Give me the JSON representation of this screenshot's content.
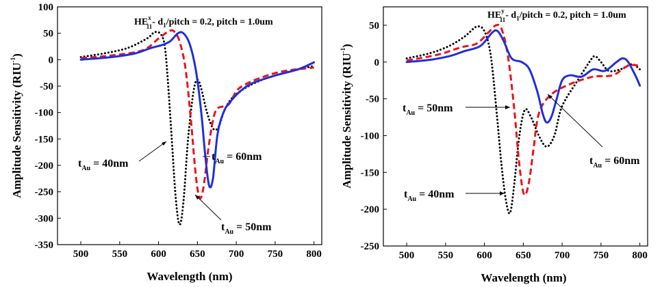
{
  "chart_data": [
    {
      "type": "line",
      "title_main": "HE",
      "title_sup": "x",
      "title_sub": "11",
      "title_rest_a": "- d",
      "title_rest_sub": "1",
      "title_rest_b": "/pitch = 0.2, pitch = 1.0um",
      "xlabel": "Wavelength (nm)",
      "ylabel": "Amplitude Sensitivity (RIU",
      "ylabel_sup": "-1",
      "ylabel_close": ")",
      "xlim": [
        470,
        810
      ],
      "ylim": [
        -350,
        100
      ],
      "xticks": [
        500,
        550,
        600,
        650,
        700,
        750,
        800
      ],
      "yticks": [
        100,
        50,
        0,
        -50,
        -100,
        -150,
        -200,
        -250,
        -300,
        -350
      ],
      "series": [
        {
          "color": "#000000",
          "dash": "dot",
          "points": [
            [
              500,
              5
            ],
            [
              530,
              12
            ],
            [
              560,
              22
            ],
            [
              585,
              40
            ],
            [
              595,
              52
            ],
            [
              603,
              48
            ],
            [
              608,
              25
            ],
            [
              612,
              -40
            ],
            [
              617,
              -150
            ],
            [
              622,
              -260
            ],
            [
              627,
              -312
            ],
            [
              632,
              -270
            ],
            [
              638,
              -150
            ],
            [
              645,
              -60
            ],
            [
              650,
              -38
            ],
            [
              655,
              -55
            ],
            [
              662,
              -98
            ],
            [
              670,
              -130
            ],
            [
              677,
              -128
            ],
            [
              685,
              -95
            ],
            [
              695,
              -72
            ],
            [
              710,
              -55
            ],
            [
              730,
              -40
            ],
            [
              750,
              -30
            ],
            [
              775,
              -20
            ],
            [
              800,
              -12
            ]
          ]
        },
        {
          "color": "#e8141c",
          "dash": "dash",
          "points": [
            [
              500,
              3
            ],
            [
              540,
              8
            ],
            [
              580,
              18
            ],
            [
              600,
              40
            ],
            [
              615,
              55
            ],
            [
              622,
              50
            ],
            [
              628,
              30
            ],
            [
              635,
              -20
            ],
            [
              642,
              -120
            ],
            [
              648,
              -220
            ],
            [
              653,
              -262
            ],
            [
              658,
              -240
            ],
            [
              664,
              -170
            ],
            [
              670,
              -115
            ],
            [
              676,
              -92
            ],
            [
              690,
              -85
            ],
            [
              700,
              -60
            ],
            [
              710,
              -48
            ],
            [
              730,
              -35
            ],
            [
              760,
              -22
            ],
            [
              800,
              -15
            ]
          ]
        },
        {
          "color": "#1f2fd9",
          "dash": "solid",
          "points": [
            [
              500,
              0
            ],
            [
              540,
              5
            ],
            [
              570,
              12
            ],
            [
              590,
              22
            ],
            [
              605,
              28
            ],
            [
              615,
              35
            ],
            [
              625,
              50
            ],
            [
              632,
              50
            ],
            [
              640,
              30
            ],
            [
              648,
              -20
            ],
            [
              655,
              -100
            ],
            [
              660,
              -180
            ],
            [
              665,
              -238
            ],
            [
              670,
              -225
            ],
            [
              676,
              -140
            ],
            [
              685,
              -95
            ],
            [
              695,
              -75
            ],
            [
              705,
              -60
            ],
            [
              720,
              -45
            ],
            [
              750,
              -30
            ],
            [
              780,
              -18
            ],
            [
              800,
              -5
            ]
          ]
        }
      ],
      "annotations": [
        {
          "main": "t",
          "sub": "Au",
          "rest": " = 40nm"
        },
        {
          "main": "t",
          "sub": "Au",
          "rest": " = 60nm"
        },
        {
          "main": "t",
          "sub": "Au",
          "rest": " = 50nm"
        }
      ]
    },
    {
      "type": "line",
      "title_main": "HE",
      "title_sup": "y",
      "title_sub": "11",
      "title_rest_a": "- d",
      "title_rest_sub": "1",
      "title_rest_b": "/pitch = 0.2, pitch = 1.0um",
      "xlabel": "Wavelength (nm)",
      "ylabel": "Amplitude Sensitivity (RIU",
      "ylabel_sup": "-1",
      "ylabel_close": ")",
      "xlim": [
        470,
        810
      ],
      "ylim": [
        -250,
        75
      ],
      "xticks": [
        500,
        550,
        600,
        650,
        700,
        750,
        800
      ],
      "yticks": [
        50,
        0,
        -50,
        -100,
        -150,
        -200,
        -250
      ],
      "series": [
        {
          "color": "#000000",
          "dash": "dot",
          "points": [
            [
              500,
              5
            ],
            [
              530,
              12
            ],
            [
              555,
              22
            ],
            [
              575,
              35
            ],
            [
              590,
              48
            ],
            [
              600,
              42
            ],
            [
              608,
              10
            ],
            [
              615,
              -60
            ],
            [
              622,
              -140
            ],
            [
              628,
              -190
            ],
            [
              633,
              -205
            ],
            [
              638,
              -170
            ],
            [
              645,
              -100
            ],
            [
              652,
              -65
            ],
            [
              660,
              -75
            ],
            [
              670,
              -100
            ],
            [
              680,
              -115
            ],
            [
              690,
              -100
            ],
            [
              700,
              -60
            ],
            [
              720,
              -25
            ],
            [
              735,
              0
            ],
            [
              742,
              8
            ],
            [
              750,
              0
            ],
            [
              760,
              -12
            ],
            [
              775,
              -10
            ],
            [
              790,
              -3
            ],
            [
              800,
              -10
            ]
          ]
        },
        {
          "color": "#e8141c",
          "dash": "dash",
          "points": [
            [
              500,
              2
            ],
            [
              540,
              10
            ],
            [
              570,
              20
            ],
            [
              590,
              25
            ],
            [
              605,
              40
            ],
            [
              615,
              50
            ],
            [
              622,
              45
            ],
            [
              630,
              10
            ],
            [
              638,
              -60
            ],
            [
              645,
              -140
            ],
            [
              651,
              -180
            ],
            [
              657,
              -165
            ],
            [
              663,
              -120
            ],
            [
              670,
              -70
            ],
            [
              685,
              -45
            ],
            [
              710,
              -30
            ],
            [
              740,
              -20
            ],
            [
              765,
              -18
            ],
            [
              785,
              -5
            ],
            [
              800,
              -5
            ]
          ]
        },
        {
          "color": "#1f2fd9",
          "dash": "solid",
          "points": [
            [
              500,
              0
            ],
            [
              530,
              3
            ],
            [
              555,
              8
            ],
            [
              575,
              15
            ],
            [
              595,
              22
            ],
            [
              610,
              40
            ],
            [
              617,
              42
            ],
            [
              625,
              28
            ],
            [
              635,
              5
            ],
            [
              648,
              0
            ],
            [
              658,
              -10
            ],
            [
              668,
              -40
            ],
            [
              675,
              -70
            ],
            [
              680,
              -82
            ],
            [
              686,
              -75
            ],
            [
              693,
              -50
            ],
            [
              700,
              -25
            ],
            [
              710,
              -18
            ],
            [
              725,
              -20
            ],
            [
              740,
              -10
            ],
            [
              755,
              -12
            ],
            [
              770,
              0
            ],
            [
              778,
              5
            ],
            [
              785,
              0
            ],
            [
              795,
              -20
            ],
            [
              800,
              -32
            ]
          ]
        }
      ],
      "annotations": [
        {
          "main": "t",
          "sub": "Au",
          "rest": " = 50nm"
        },
        {
          "main": "t",
          "sub": "Au",
          "rest": " = 60nm"
        },
        {
          "main": "t",
          "sub": "Au",
          "rest": " = 40nm"
        }
      ]
    }
  ]
}
